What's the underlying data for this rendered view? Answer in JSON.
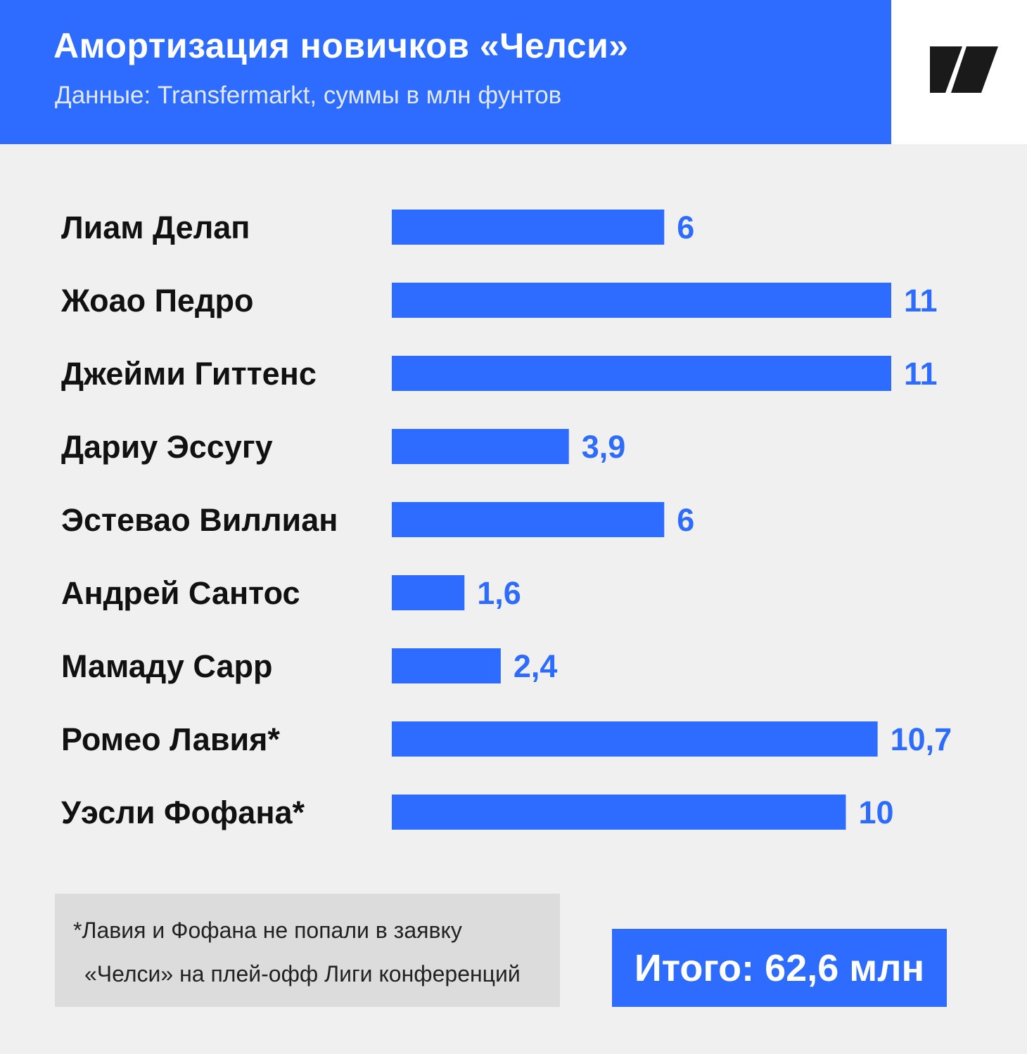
{
  "header": {
    "title": "Амортизация новичков «Челси»",
    "subtitle": "Данные: Transfermarkt, суммы в млн фунтов",
    "logo_icon": "media-logo-icon"
  },
  "colors": {
    "accent": "#2e6cff",
    "background": "#f0f0f0",
    "note_background": "#dcdcdc",
    "label_text": "#111111"
  },
  "chart_data": {
    "type": "bar",
    "orientation": "horizontal",
    "title": "Амортизация новичков «Челси»",
    "subtitle": "Данные: Transfermarkt, суммы в млн фунтов",
    "categories": [
      "Лиам Делап",
      "Жоао Педро",
      "Джейми Гиттенс",
      "Дариу Эссугу",
      "Эстевао Виллиан",
      "Андрей Сантос",
      "Мамаду Сарр",
      "Ромео Лавия*",
      "Уэсли Фофана*"
    ],
    "values": [
      6,
      11,
      11,
      3.9,
      6,
      1.6,
      2.4,
      10.7,
      10
    ],
    "value_labels": [
      "6",
      "11",
      "11",
      "3,9",
      "6",
      "1,6",
      "2,4",
      "10,7",
      "10"
    ],
    "xlim": [
      0,
      11
    ],
    "grid": false,
    "legend": "none"
  },
  "footnote": {
    "line1": "*Лавия и Фофана не попали в заявку",
    "line2": "«Челси» на плей-офф Лиги конференций"
  },
  "total": {
    "text": "Итого: 62,6 млн"
  }
}
